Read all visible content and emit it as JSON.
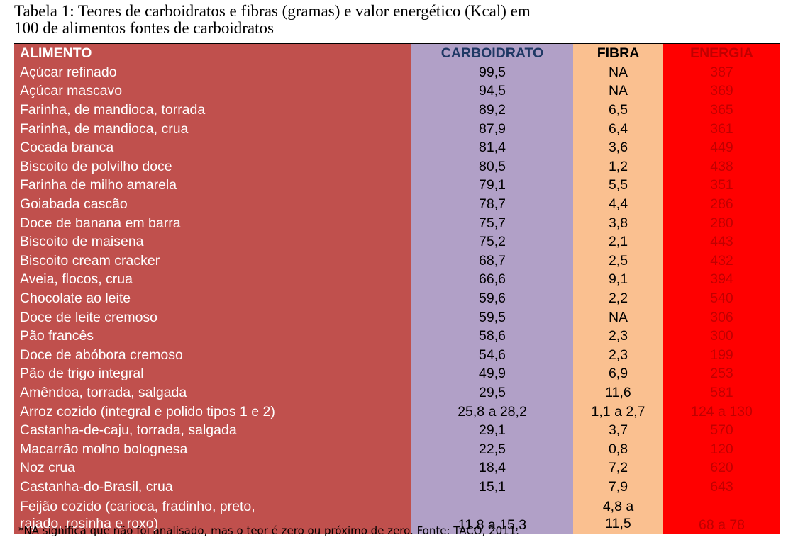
{
  "caption": {
    "line1": "Tabela 1: Teores de carboidratos e fibras (gramas) e valor energético (Kcal) em",
    "line2": "100 de alimentos fontes de carboidratos"
  },
  "headers": {
    "food": "ALIMENTO",
    "carb": "CARBOIDRATO",
    "fiber": "FIBRA",
    "energy": "ENERGIA"
  },
  "rows": [
    {
      "food": "Açúcar refinado",
      "carb": "99,5",
      "fiber": "NA",
      "energy": "387"
    },
    {
      "food": "Açúcar mascavo",
      "carb": "94,5",
      "fiber": "NA",
      "energy": "369"
    },
    {
      "food": "Farinha, de mandioca, torrada",
      "carb": "89,2",
      "fiber": "6,5",
      "energy": "365"
    },
    {
      "food": "Farinha, de mandioca, crua",
      "carb": "87,9",
      "fiber": "6,4",
      "energy": "361"
    },
    {
      "food": "Cocada branca",
      "carb": "81,4",
      "fiber": "3,6",
      "energy": "449"
    },
    {
      "food": "Biscoito de polvilho doce",
      "carb": "80,5",
      "fiber": "1,2",
      "energy": "438"
    },
    {
      "food": "Farinha de milho amarela",
      "carb": "79,1",
      "fiber": "5,5",
      "energy": "351"
    },
    {
      "food": "Goiabada cascão",
      "carb": "78,7",
      "fiber": "4,4",
      "energy": "286"
    },
    {
      "food": "Doce de banana em barra",
      "carb": "75,7",
      "fiber": "3,8",
      "energy": "280"
    },
    {
      "food": "Biscoito de maisena",
      "carb": "75,2",
      "fiber": "2,1",
      "energy": "443"
    },
    {
      "food": "Biscoito cream cracker",
      "carb": "68,7",
      "fiber": "2,5",
      "energy": "432"
    },
    {
      "food": "Aveia, flocos, crua",
      "carb": "66,6",
      "fiber": "9,1",
      "energy": "394"
    },
    {
      "food": "Chocolate ao leite",
      "carb": "59,6",
      "fiber": "2,2",
      "energy": "540"
    },
    {
      "food": "Doce de leite cremoso",
      "carb": "59,5",
      "fiber": "NA",
      "energy": "306"
    },
    {
      "food": "Pão francês",
      "carb": "58,6",
      "fiber": "2,3",
      "energy": "300"
    },
    {
      "food": "Doce de abóbora cremoso",
      "carb": "54,6",
      "fiber": "2,3",
      "energy": "199"
    },
    {
      "food": "Pão de trigo integral",
      "carb": "49,9",
      "fiber": "6,9",
      "energy": "253"
    },
    {
      "food": "Amêndoa, torrada, salgada",
      "carb": "29,5",
      "fiber": "11,6",
      "energy": "581"
    },
    {
      "food": "Arroz cozido (integral e polido tipos 1 e 2)",
      "carb": "25,8 a 28,2",
      "fiber": "1,1 a 2,7",
      "energy": "124 a 130"
    },
    {
      "food": "Castanha-de-caju, torrada, salgada",
      "carb": "29,1",
      "fiber": "3,7",
      "energy": "570"
    },
    {
      "food": "Macarrão molho bolognesa",
      "carb": "22,5",
      "fiber": "0,8",
      "energy": "120"
    },
    {
      "food": "Noz crua",
      "carb": "18,4",
      "fiber": "7,2",
      "energy": "620"
    },
    {
      "food": "Castanha-do-Brasil, crua",
      "carb": "15,1",
      "fiber": "7,9",
      "energy": "643"
    }
  ],
  "last_row": {
    "food_line1": "Feijão cozido (carioca, fradinho, preto,",
    "food_line2": "rajado, rosinha e roxo)",
    "carb": "11,8 a 15,3",
    "fiber_line1": "4,8 a",
    "fiber_line2": "11,5",
    "energy": "68 a 78"
  },
  "footnote": "*NA significa que não foi analisado, mas o teor é zero ou próximo de zero. Fonte: TACO, 2011."
}
